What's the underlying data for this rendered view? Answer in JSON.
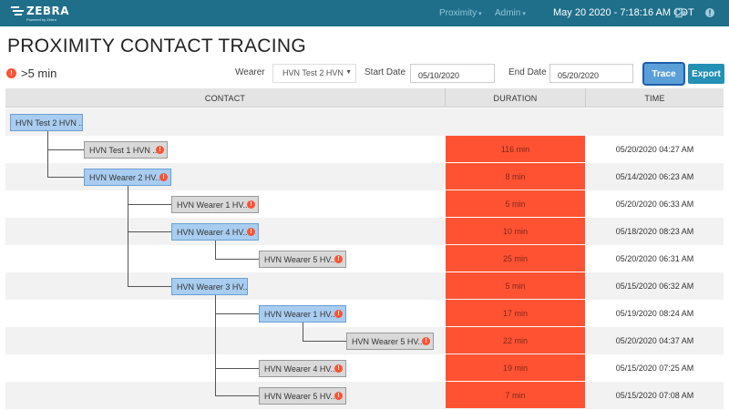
{
  "header": {
    "logo_text": "ZEBRA",
    "logo_subtext": "Powered by Zebra",
    "nav": [
      {
        "label": "Proximity",
        "caret": "▾"
      },
      {
        "label": "Admin",
        "caret": "▾"
      }
    ],
    "datetime": "May 20 2020 - 7:18:16 AM CDT"
  },
  "page": {
    "title": "PROXIMITY CONTACT TRACING",
    "legend_label": ">5 min",
    "alert_glyph": "!"
  },
  "filters": {
    "wearer_label": "Wearer",
    "wearer_value": "HVN Test 2 HVN",
    "start_label": "Start Date",
    "start_value": "05/10/2020",
    "end_label": "End Date",
    "end_value": "05/20/2020",
    "trace_label": "Trace",
    "export_label": "Export"
  },
  "table": {
    "columns": [
      "CONTACT",
      "DURATION",
      "TIME"
    ],
    "root": "HVN Test 2 HVN ...",
    "rows": [
      {
        "contact": "HVN Test 1 HVN ...",
        "level": 1,
        "color": "gray",
        "alert": true,
        "duration": "116 min",
        "time": "05/20/2020 04:27 AM"
      },
      {
        "contact": "HVN Wearer 2 HV...",
        "level": 1,
        "color": "blue",
        "alert": true,
        "duration": "8 min",
        "time": "05/14/2020 06:23 AM"
      },
      {
        "contact": "HVN Wearer 1 HV...",
        "level": 2,
        "color": "gray",
        "alert": true,
        "duration": "5 min",
        "time": "05/20/2020 06:33 AM"
      },
      {
        "contact": "HVN Wearer 4 HV...",
        "level": 2,
        "color": "blue",
        "alert": true,
        "duration": "10 min",
        "time": "05/18/2020 08:23 AM"
      },
      {
        "contact": "HVN Wearer 5 HV...",
        "level": 3,
        "color": "gray",
        "alert": true,
        "duration": "25 min",
        "time": "05/20/2020 06:31 AM"
      },
      {
        "contact": "HVN Wearer 3 HV...",
        "level": 2,
        "color": "blue",
        "alert": false,
        "duration": "5 min",
        "time": "05/15/2020 06:32 AM"
      },
      {
        "contact": "HVN Wearer 1 HV...",
        "level": 3,
        "color": "blue",
        "alert": true,
        "duration": "17 min",
        "time": "05/19/2020 08:24 AM"
      },
      {
        "contact": "HVN Wearer 5 HV...",
        "level": 4,
        "color": "gray",
        "alert": true,
        "duration": "22 min",
        "time": "05/20/2020 04:37 AM"
      },
      {
        "contact": "HVN Wearer 4 HV...",
        "level": 3,
        "color": "gray",
        "alert": true,
        "duration": "19 min",
        "time": "05/15/2020 07:25 AM"
      },
      {
        "contact": "HVN Wearer 5 HV...",
        "level": 3,
        "color": "gray",
        "alert": true,
        "duration": "7 min",
        "time": "05/15/2020 07:08 AM"
      }
    ]
  },
  "colors": {
    "header_bg": "#1f6f8b",
    "duration_alert": "#ff5233",
    "node_blue": "#a8cdf0",
    "node_gray": "#d9d9d9"
  }
}
